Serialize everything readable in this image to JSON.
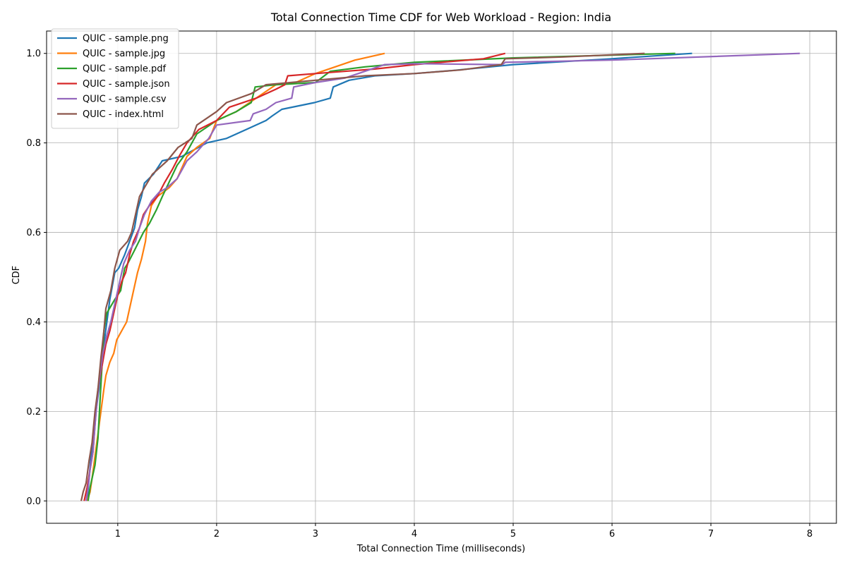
{
  "chart_data": {
    "type": "line",
    "title": "Total Connection Time CDF for Web Workload - Region: India",
    "xlabel": "Total Connection Time (milliseconds)",
    "ylabel": "CDF",
    "xlim": [
      0.28,
      8.27
    ],
    "ylim": [
      -0.05,
      1.05
    ],
    "x_ticks": [
      1,
      2,
      3,
      4,
      5,
      6,
      7,
      8
    ],
    "y_ticks": [
      0.0,
      0.2,
      0.4,
      0.6,
      0.8,
      1.0
    ],
    "x_tick_labels": [
      "1",
      "2",
      "3",
      "4",
      "5",
      "6",
      "7",
      "8"
    ],
    "y_tick_labels": [
      "0.0",
      "0.2",
      "0.4",
      "0.6",
      "0.8",
      "1.0"
    ],
    "grid": true,
    "legend_position": "upper-left",
    "series": [
      {
        "name": "QUIC - sample.png",
        "color": "#1f77b4",
        "points": [
          [
            0.69,
            0.0
          ],
          [
            0.71,
            0.05
          ],
          [
            0.73,
            0.1
          ],
          [
            0.76,
            0.15
          ],
          [
            0.78,
            0.2
          ],
          [
            0.81,
            0.25
          ],
          [
            0.83,
            0.3
          ],
          [
            0.86,
            0.35
          ],
          [
            0.89,
            0.4
          ],
          [
            0.92,
            0.45
          ],
          [
            0.97,
            0.51
          ],
          [
            1.01,
            0.52
          ],
          [
            1.07,
            0.55
          ],
          [
            1.12,
            0.58
          ],
          [
            1.17,
            0.61
          ],
          [
            1.2,
            0.65
          ],
          [
            1.24,
            0.68
          ],
          [
            1.27,
            0.71
          ],
          [
            1.36,
            0.73
          ],
          [
            1.45,
            0.76
          ],
          [
            1.65,
            0.77
          ],
          [
            1.9,
            0.8
          ],
          [
            2.1,
            0.81
          ],
          [
            2.3,
            0.83
          ],
          [
            2.5,
            0.85
          ],
          [
            2.56,
            0.86
          ],
          [
            2.66,
            0.875
          ],
          [
            2.99,
            0.89
          ],
          [
            3.15,
            0.9
          ],
          [
            3.18,
            0.925
          ],
          [
            3.34,
            0.94
          ],
          [
            3.6,
            0.95
          ],
          [
            4.0,
            0.955
          ],
          [
            4.4,
            0.962
          ],
          [
            5.0,
            0.975
          ],
          [
            6.0,
            0.988
          ],
          [
            6.81,
            1.0
          ]
        ]
      },
      {
        "name": "QUIC - sample.jpg",
        "color": "#ff7f0e",
        "points": [
          [
            0.69,
            0.0
          ],
          [
            0.72,
            0.02
          ],
          [
            0.74,
            0.05
          ],
          [
            0.77,
            0.1
          ],
          [
            0.8,
            0.15
          ],
          [
            0.83,
            0.2
          ],
          [
            0.86,
            0.25
          ],
          [
            0.88,
            0.28
          ],
          [
            0.92,
            0.31
          ],
          [
            0.96,
            0.33
          ],
          [
            0.99,
            0.36
          ],
          [
            1.04,
            0.38
          ],
          [
            1.09,
            0.4
          ],
          [
            1.12,
            0.43
          ],
          [
            1.16,
            0.47
          ],
          [
            1.2,
            0.51
          ],
          [
            1.24,
            0.54
          ],
          [
            1.28,
            0.58
          ],
          [
            1.3,
            0.62
          ],
          [
            1.34,
            0.66
          ],
          [
            1.4,
            0.68
          ],
          [
            1.52,
            0.7
          ],
          [
            1.6,
            0.72
          ],
          [
            1.7,
            0.77
          ],
          [
            1.8,
            0.79
          ],
          [
            1.93,
            0.81
          ],
          [
            2.0,
            0.85
          ],
          [
            2.2,
            0.87
          ],
          [
            2.4,
            0.9
          ],
          [
            2.6,
            0.93
          ],
          [
            2.8,
            0.935
          ],
          [
            3.0,
            0.955
          ],
          [
            3.2,
            0.97
          ],
          [
            3.4,
            0.985
          ],
          [
            3.7,
            1.0
          ]
        ]
      },
      {
        "name": "QUIC - sample.pdf",
        "color": "#2ca02c",
        "points": [
          [
            0.7,
            0.0
          ],
          [
            0.72,
            0.03
          ],
          [
            0.74,
            0.05
          ],
          [
            0.77,
            0.08
          ],
          [
            0.8,
            0.14
          ],
          [
            0.82,
            0.22
          ],
          [
            0.84,
            0.3
          ],
          [
            0.86,
            0.38
          ],
          [
            0.89,
            0.42
          ],
          [
            0.97,
            0.45
          ],
          [
            1.03,
            0.47
          ],
          [
            1.07,
            0.52
          ],
          [
            1.1,
            0.53
          ],
          [
            1.17,
            0.56
          ],
          [
            1.26,
            0.6
          ],
          [
            1.32,
            0.62
          ],
          [
            1.39,
            0.65
          ],
          [
            1.45,
            0.68
          ],
          [
            1.6,
            0.75
          ],
          [
            1.7,
            0.78
          ],
          [
            1.8,
            0.82
          ],
          [
            2.0,
            0.85
          ],
          [
            2.2,
            0.87
          ],
          [
            2.35,
            0.89
          ],
          [
            2.39,
            0.925
          ],
          [
            2.6,
            0.93
          ],
          [
            3.0,
            0.935
          ],
          [
            3.15,
            0.96
          ],
          [
            3.5,
            0.97
          ],
          [
            4.0,
            0.98
          ],
          [
            5.0,
            0.99
          ],
          [
            6.64,
            1.0
          ]
        ]
      },
      {
        "name": "QUIC - sample.json",
        "color": "#d62728",
        "points": [
          [
            0.66,
            0.0
          ],
          [
            0.69,
            0.03
          ],
          [
            0.72,
            0.07
          ],
          [
            0.75,
            0.11
          ],
          [
            0.78,
            0.2
          ],
          [
            0.8,
            0.25
          ],
          [
            0.84,
            0.3
          ],
          [
            0.88,
            0.35
          ],
          [
            0.92,
            0.38
          ],
          [
            0.96,
            0.42
          ],
          [
            1.0,
            0.46
          ],
          [
            1.04,
            0.49
          ],
          [
            1.08,
            0.51
          ],
          [
            1.12,
            0.55
          ],
          [
            1.16,
            0.58
          ],
          [
            1.22,
            0.61
          ],
          [
            1.26,
            0.64
          ],
          [
            1.32,
            0.66
          ],
          [
            1.4,
            0.68
          ],
          [
            1.47,
            0.71
          ],
          [
            1.55,
            0.74
          ],
          [
            1.62,
            0.77
          ],
          [
            1.7,
            0.8
          ],
          [
            1.82,
            0.83
          ],
          [
            2.0,
            0.85
          ],
          [
            2.13,
            0.88
          ],
          [
            2.4,
            0.9
          ],
          [
            2.6,
            0.92
          ],
          [
            2.69,
            0.93
          ],
          [
            2.72,
            0.95
          ],
          [
            3.0,
            0.955
          ],
          [
            3.6,
            0.965
          ],
          [
            4.0,
            0.975
          ],
          [
            4.7,
            0.988
          ],
          [
            4.92,
            1.0
          ]
        ]
      },
      {
        "name": "QUIC - sample.csv",
        "color": "#9467bd",
        "points": [
          [
            0.68,
            0.0
          ],
          [
            0.7,
            0.03
          ],
          [
            0.72,
            0.07
          ],
          [
            0.75,
            0.11
          ],
          [
            0.77,
            0.17
          ],
          [
            0.79,
            0.22
          ],
          [
            0.82,
            0.28
          ],
          [
            0.85,
            0.33
          ],
          [
            0.89,
            0.37
          ],
          [
            0.93,
            0.4
          ],
          [
            0.97,
            0.44
          ],
          [
            1.01,
            0.48
          ],
          [
            1.06,
            0.53
          ],
          [
            1.12,
            0.56
          ],
          [
            1.18,
            0.58
          ],
          [
            1.22,
            0.61
          ],
          [
            1.27,
            0.64
          ],
          [
            1.34,
            0.67
          ],
          [
            1.42,
            0.69
          ],
          [
            1.5,
            0.7
          ],
          [
            1.6,
            0.72
          ],
          [
            1.65,
            0.74
          ],
          [
            1.7,
            0.76
          ],
          [
            1.8,
            0.78
          ],
          [
            1.92,
            0.81
          ],
          [
            2.0,
            0.84
          ],
          [
            2.34,
            0.85
          ],
          [
            2.37,
            0.865
          ],
          [
            2.5,
            0.875
          ],
          [
            2.6,
            0.89
          ],
          [
            2.76,
            0.9
          ],
          [
            2.78,
            0.925
          ],
          [
            3.0,
            0.935
          ],
          [
            3.3,
            0.945
          ],
          [
            3.5,
            0.96
          ],
          [
            3.7,
            0.975
          ],
          [
            4.0,
            0.977
          ],
          [
            4.89,
            0.975
          ],
          [
            4.92,
            0.98
          ],
          [
            6.0,
            0.985
          ],
          [
            7.9,
            1.0
          ]
        ]
      },
      {
        "name": "QUIC - index.html",
        "color": "#8c564b",
        "points": [
          [
            0.63,
            0.0
          ],
          [
            0.65,
            0.02
          ],
          [
            0.68,
            0.04
          ],
          [
            0.71,
            0.09
          ],
          [
            0.74,
            0.13
          ],
          [
            0.77,
            0.2
          ],
          [
            0.8,
            0.25
          ],
          [
            0.83,
            0.32
          ],
          [
            0.86,
            0.38
          ],
          [
            0.88,
            0.43
          ],
          [
            0.93,
            0.47
          ],
          [
            0.97,
            0.52
          ],
          [
            1.02,
            0.56
          ],
          [
            1.1,
            0.58
          ],
          [
            1.14,
            0.6
          ],
          [
            1.18,
            0.64
          ],
          [
            1.22,
            0.68
          ],
          [
            1.27,
            0.7
          ],
          [
            1.35,
            0.73
          ],
          [
            1.4,
            0.74
          ],
          [
            1.5,
            0.76
          ],
          [
            1.61,
            0.79
          ],
          [
            1.75,
            0.81
          ],
          [
            1.8,
            0.84
          ],
          [
            2.0,
            0.87
          ],
          [
            2.1,
            0.89
          ],
          [
            2.35,
            0.91
          ],
          [
            2.5,
            0.93
          ],
          [
            3.0,
            0.94
          ],
          [
            3.5,
            0.95
          ],
          [
            4.0,
            0.955
          ],
          [
            4.47,
            0.963
          ],
          [
            4.88,
            0.975
          ],
          [
            4.92,
            0.988
          ],
          [
            5.5,
            0.992
          ],
          [
            6.33,
            1.0
          ]
        ]
      }
    ]
  }
}
